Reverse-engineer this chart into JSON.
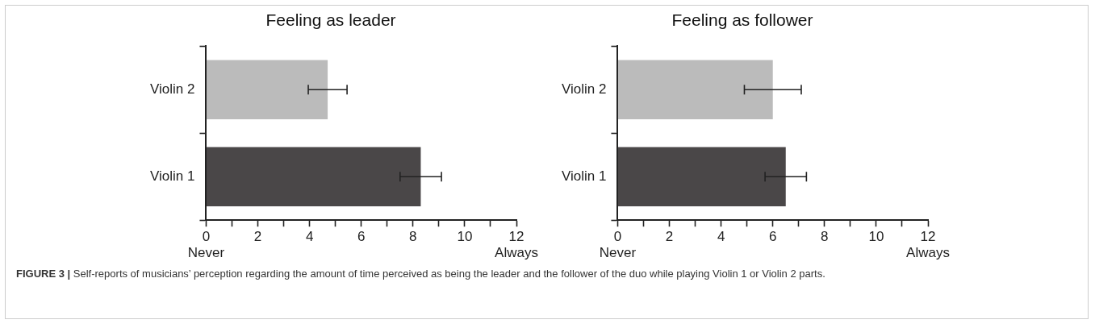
{
  "chart_data": [
    {
      "type": "bar",
      "orientation": "horizontal",
      "title": "Feeling as leader",
      "categories": [
        "Violin 2",
        "Violin 1"
      ],
      "values": [
        4.7,
        8.3
      ],
      "colors": [
        "#bbbbbb",
        "#4a4748"
      ],
      "errors": [
        0.75,
        0.8
      ],
      "xlim": [
        0,
        12
      ],
      "xticks": [
        {
          "value": 0,
          "label": "0\nNever"
        },
        {
          "value": 1,
          "label": null
        },
        2,
        {
          "value": 3,
          "label": null
        },
        4,
        {
          "value": 5,
          "label": null
        },
        6,
        {
          "value": 7,
          "label": null
        },
        8,
        {
          "value": 9,
          "label": null
        },
        10,
        {
          "value": 11,
          "label": null
        },
        {
          "value": 12,
          "label": "12\nAlways"
        }
      ],
      "grid": false,
      "legend": false,
      "annotations": [
        "FIGURE 3 | Self-reports of musicians’ perception regarding the amount of time perceived as being the leader and the follower of the duo while playing Violin 1 or Violin 2 parts."
      ]
    },
    {
      "type": "bar",
      "orientation": "horizontal",
      "title": "Feeling as follower",
      "categories": [
        "Violin 2",
        "Violin 1"
      ],
      "values": [
        6.0,
        6.5
      ],
      "colors": [
        "#bbbbbb",
        "#4a4748"
      ],
      "errors": [
        1.1,
        0.8
      ],
      "xlim": [
        0,
        12
      ],
      "xticks": [
        {
          "value": 0,
          "label": "0\nNever"
        },
        {
          "value": 1,
          "label": null
        },
        2,
        {
          "value": 3,
          "label": null
        },
        4,
        {
          "value": 5,
          "label": null
        },
        6,
        {
          "value": 7,
          "label": null
        },
        8,
        {
          "value": 9,
          "label": null
        },
        10,
        {
          "value": 11,
          "label": null
        },
        {
          "value": 12,
          "label": "12\nAlways"
        }
      ],
      "grid": false,
      "legend": false
    }
  ]
}
